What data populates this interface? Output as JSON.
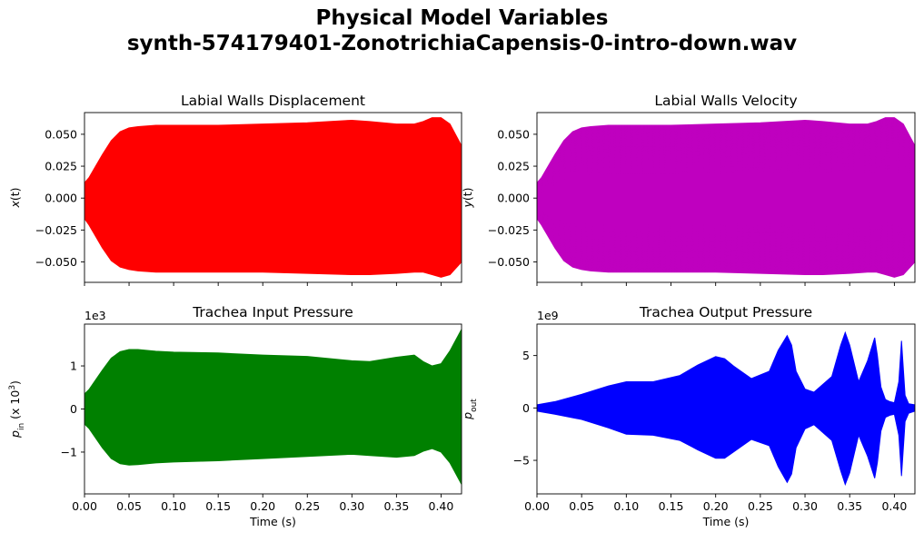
{
  "figure": {
    "title_line1": "Physical Model Variables",
    "title_line2": "synth-574179401-ZonotrichiaCapensis-0-intro-down.wav"
  },
  "chart_data": [
    {
      "id": "disp",
      "type": "area",
      "title": "Labial Walls Displacement",
      "xlabel": "",
      "ylabel": "x(t)",
      "ylabel_parts": [
        {
          "t": "x"
        },
        {
          "t": "(t)"
        }
      ],
      "color": "#ff0000",
      "offset_text": "",
      "xlim": [
        0,
        0.423
      ],
      "ylim": [
        -0.066,
        0.067
      ],
      "xticks": [
        0,
        0.05,
        0.1,
        0.15,
        0.2,
        0.25,
        0.3,
        0.35,
        0.4
      ],
      "xtick_labels": [],
      "yticks": [
        -0.05,
        -0.025,
        0,
        0.025,
        0.05
      ],
      "ytick_labels": [
        "−0.050",
        "−0.025",
        "0.000",
        "0.025",
        "0.050"
      ],
      "envelope": {
        "t": [
          0,
          0.005,
          0.01,
          0.02,
          0.03,
          0.04,
          0.05,
          0.06,
          0.08,
          0.1,
          0.15,
          0.2,
          0.25,
          0.3,
          0.32,
          0.35,
          0.37,
          0.38,
          0.39,
          0.4,
          0.41,
          0.423
        ],
        "upper": [
          0.012,
          0.016,
          0.022,
          0.034,
          0.045,
          0.052,
          0.055,
          0.056,
          0.057,
          0.057,
          0.057,
          0.058,
          0.059,
          0.061,
          0.06,
          0.058,
          0.058,
          0.06,
          0.063,
          0.063,
          0.058,
          0.041
        ],
        "lower": [
          -0.016,
          -0.021,
          -0.027,
          -0.039,
          -0.049,
          -0.054,
          -0.056,
          -0.057,
          -0.058,
          -0.058,
          -0.058,
          -0.058,
          -0.059,
          -0.06,
          -0.06,
          -0.059,
          -0.058,
          -0.058,
          -0.06,
          -0.062,
          -0.06,
          -0.05
        ]
      }
    },
    {
      "id": "vel",
      "type": "area",
      "title": "Labial Walls Velocity",
      "xlabel": "",
      "ylabel": "y(t)",
      "ylabel_parts": [
        {
          "t": "y"
        },
        {
          "t": "(t)"
        }
      ],
      "color": "#bf00bf",
      "offset_text": "",
      "xlim": [
        0,
        0.423
      ],
      "ylim": [
        -0.066,
        0.067
      ],
      "xticks": [
        0,
        0.05,
        0.1,
        0.15,
        0.2,
        0.25,
        0.3,
        0.35,
        0.4
      ],
      "xtick_labels": [],
      "yticks": [
        -0.05,
        -0.025,
        0,
        0.025,
        0.05
      ],
      "ytick_labels": [
        "−0.050",
        "−0.025",
        "0.000",
        "0.025",
        "0.050"
      ],
      "envelope": {
        "t": [
          0,
          0.005,
          0.01,
          0.02,
          0.03,
          0.04,
          0.05,
          0.06,
          0.08,
          0.1,
          0.15,
          0.2,
          0.25,
          0.3,
          0.32,
          0.35,
          0.37,
          0.38,
          0.39,
          0.4,
          0.41,
          0.423
        ],
        "upper": [
          0.012,
          0.016,
          0.022,
          0.034,
          0.045,
          0.052,
          0.055,
          0.056,
          0.057,
          0.057,
          0.057,
          0.058,
          0.059,
          0.061,
          0.06,
          0.058,
          0.058,
          0.06,
          0.063,
          0.063,
          0.058,
          0.041
        ],
        "lower": [
          -0.016,
          -0.021,
          -0.027,
          -0.039,
          -0.049,
          -0.054,
          -0.056,
          -0.057,
          -0.058,
          -0.058,
          -0.058,
          -0.058,
          -0.059,
          -0.06,
          -0.06,
          -0.059,
          -0.058,
          -0.058,
          -0.06,
          -0.062,
          -0.06,
          -0.05
        ]
      }
    },
    {
      "id": "pin",
      "type": "area",
      "title": "Trachea Input Pressure",
      "xlabel": "Time (s)",
      "ylabel": "p_in (x 10^3)",
      "ylabel_parts": [
        {
          "t": "p"
        },
        {
          "t": "in",
          "sub": true
        },
        {
          "t": " (x 10"
        },
        {
          "t": "3",
          "sup": true
        },
        {
          "t": ")"
        }
      ],
      "color": "#008000",
      "offset_text": "1e3",
      "xlim": [
        0,
        0.423
      ],
      "ylim": [
        -1.97,
        1.97
      ],
      "xticks": [
        0,
        0.05,
        0.1,
        0.15,
        0.2,
        0.25,
        0.3,
        0.35,
        0.4
      ],
      "xtick_labels": [
        "0.00",
        "0.05",
        "0.10",
        "0.15",
        "0.20",
        "0.25",
        "0.30",
        "0.35",
        "0.40"
      ],
      "yticks": [
        -1,
        0,
        1
      ],
      "ytick_labels": [
        "−1",
        "0",
        "1"
      ],
      "envelope": {
        "t": [
          0,
          0.005,
          0.01,
          0.02,
          0.03,
          0.04,
          0.05,
          0.06,
          0.08,
          0.1,
          0.15,
          0.2,
          0.25,
          0.3,
          0.32,
          0.35,
          0.37,
          0.38,
          0.39,
          0.4,
          0.41,
          0.423
        ],
        "upper": [
          0.35,
          0.45,
          0.6,
          0.9,
          1.18,
          1.33,
          1.38,
          1.38,
          1.34,
          1.32,
          1.3,
          1.25,
          1.22,
          1.12,
          1.1,
          1.2,
          1.25,
          1.1,
          1.0,
          1.05,
          1.35,
          1.85
        ],
        "lower": [
          -0.35,
          -0.45,
          -0.6,
          -0.9,
          -1.15,
          -1.27,
          -1.3,
          -1.29,
          -1.25,
          -1.23,
          -1.2,
          -1.15,
          -1.1,
          -1.05,
          -1.08,
          -1.12,
          -1.08,
          -0.98,
          -0.92,
          -1.0,
          -1.25,
          -1.75
        ]
      }
    },
    {
      "id": "pout",
      "type": "area",
      "title": "Trachea Output Pressure",
      "xlabel": "Time (s)",
      "ylabel": "p_out",
      "ylabel_parts": [
        {
          "t": "p"
        },
        {
          "t": "out",
          "sub": true
        }
      ],
      "color": "#0000ff",
      "offset_text": "1e9",
      "xlim": [
        0,
        0.423
      ],
      "ylim": [
        -8.2,
        8.0
      ],
      "xticks": [
        0,
        0.05,
        0.1,
        0.15,
        0.2,
        0.25,
        0.3,
        0.35,
        0.4
      ],
      "xtick_labels": [
        "0.00",
        "0.05",
        "0.10",
        "0.15",
        "0.20",
        "0.25",
        "0.30",
        "0.35",
        "0.40"
      ],
      "yticks": [
        -5,
        0,
        5
      ],
      "ytick_labels": [
        "−5",
        "0",
        "5"
      ],
      "envelope": {
        "t": [
          0,
          0.02,
          0.05,
          0.08,
          0.1,
          0.13,
          0.16,
          0.18,
          0.2,
          0.21,
          0.22,
          0.24,
          0.26,
          0.27,
          0.28,
          0.285,
          0.29,
          0.3,
          0.31,
          0.33,
          0.34,
          0.345,
          0.35,
          0.36,
          0.37,
          0.378,
          0.381,
          0.385,
          0.39,
          0.395,
          0.4,
          0.405,
          0.408,
          0.412,
          0.416,
          0.423
        ],
        "upper": [
          0.3,
          0.6,
          1.3,
          2.1,
          2.5,
          2.5,
          3.1,
          4.1,
          4.9,
          4.7,
          4.0,
          2.8,
          3.5,
          5.5,
          6.9,
          6.0,
          3.5,
          1.8,
          1.5,
          3.0,
          6.0,
          7.2,
          6.0,
          2.5,
          4.5,
          6.7,
          5.0,
          2.0,
          0.8,
          0.6,
          0.5,
          2.5,
          6.4,
          1.2,
          0.4,
          0.3
        ],
        "lower": [
          -0.3,
          -0.6,
          -1.1,
          -1.9,
          -2.5,
          -2.6,
          -3.1,
          -4.0,
          -4.8,
          -4.8,
          -4.2,
          -3.0,
          -3.6,
          -5.6,
          -7.1,
          -6.3,
          -3.8,
          -2.0,
          -1.6,
          -3.1,
          -6.0,
          -7.3,
          -6.2,
          -2.6,
          -4.6,
          -6.7,
          -5.2,
          -2.2,
          -0.9,
          -0.7,
          -0.6,
          -2.6,
          -6.5,
          -1.3,
          -0.5,
          -0.3
        ]
      }
    }
  ]
}
